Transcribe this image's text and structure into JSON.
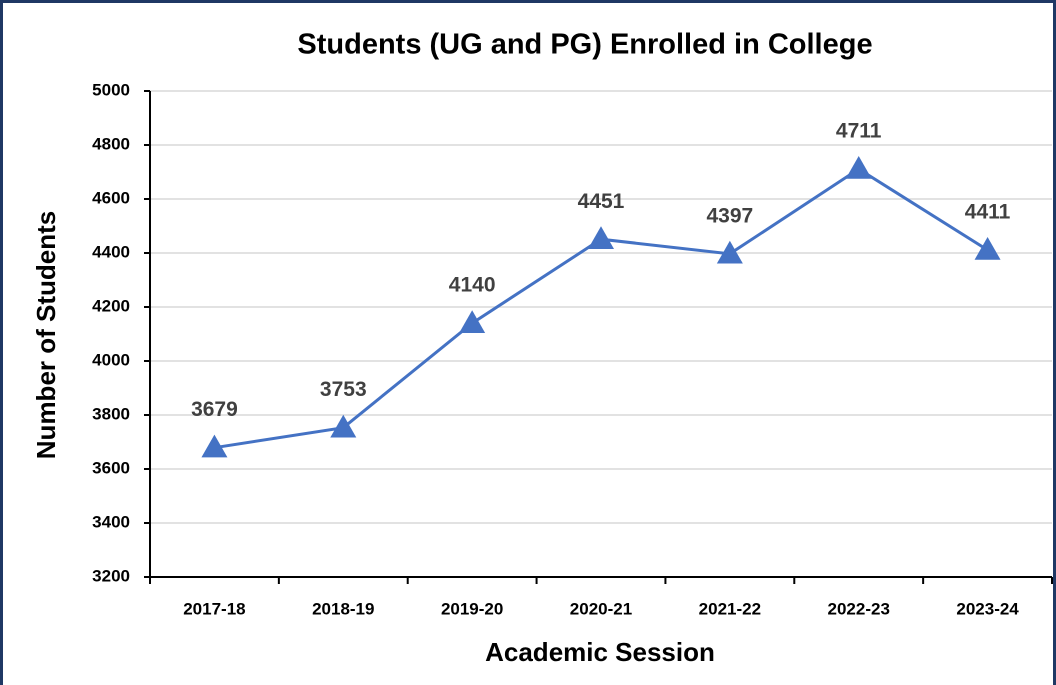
{
  "chart_data": {
    "type": "line",
    "title": "Students  (UG and PG) Enrolled in College",
    "x_label": "Academic Session",
    "y_label": "Number of Students",
    "categories": [
      "2017-18",
      "2018-19",
      "2019-20",
      "2020-21",
      "2021-22",
      "2022-23",
      "2023-24"
    ],
    "series": [
      {
        "name": "Students",
        "color": "#4472c4",
        "values": [
          3679,
          3753,
          4140,
          4451,
          4397,
          4711,
          4411
        ]
      }
    ],
    "ylim": [
      3200,
      5000
    ],
    "yticks": [
      3200,
      3400,
      3600,
      3800,
      4000,
      4200,
      4400,
      4600,
      4800,
      5000
    ],
    "grid": true,
    "marker": "triangle"
  }
}
